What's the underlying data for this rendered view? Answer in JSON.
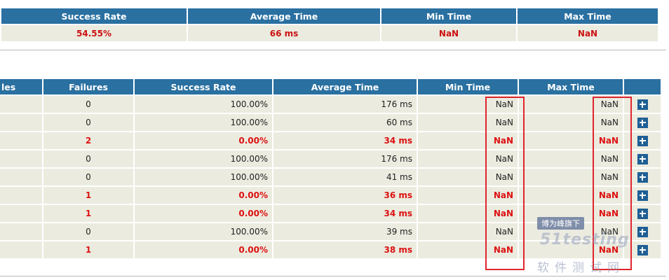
{
  "summary": {
    "headers": [
      "Success Rate",
      "Average Time",
      "Min Time",
      "Max Time"
    ],
    "values": [
      "54.55%",
      "66 ms",
      "NaN",
      "NaN"
    ]
  },
  "details": {
    "headers": [
      "les",
      "Failures",
      "Success Rate",
      "Average Time",
      "Min Time",
      "Max Time"
    ],
    "rows": [
      {
        "failures": "0",
        "success_rate": "100.00%",
        "avg_time": "176 ms",
        "min_time": "NaN",
        "max_time": "NaN"
      },
      {
        "failures": "0",
        "success_rate": "100.00%",
        "avg_time": "60 ms",
        "min_time": "NaN",
        "max_time": "NaN"
      },
      {
        "failures": "2",
        "success_rate": "0.00%",
        "avg_time": "34 ms",
        "min_time": "NaN",
        "max_time": "NaN"
      },
      {
        "failures": "0",
        "success_rate": "100.00%",
        "avg_time": "176 ms",
        "min_time": "NaN",
        "max_time": "NaN"
      },
      {
        "failures": "0",
        "success_rate": "100.00%",
        "avg_time": "41 ms",
        "min_time": "NaN",
        "max_time": "NaN"
      },
      {
        "failures": "1",
        "success_rate": "0.00%",
        "avg_time": "36 ms",
        "min_time": "NaN",
        "max_time": "NaN"
      },
      {
        "failures": "1",
        "success_rate": "0.00%",
        "avg_time": "34 ms",
        "min_time": "NaN",
        "max_time": "NaN"
      },
      {
        "failures": "0",
        "success_rate": "100.00%",
        "avg_time": "39 ms",
        "min_time": "NaN",
        "max_time": "NaN"
      },
      {
        "failures": "1",
        "success_rate": "0.00%",
        "avg_time": "38 ms",
        "min_time": "NaN",
        "max_time": "NaN"
      }
    ]
  },
  "watermark": {
    "tag": "博为峰旗下",
    "logo": "51testing",
    "sub": "软件测试网"
  },
  "colors": {
    "header_bg": "#2a70a1",
    "cell_bg": "#ebebdf",
    "failure_text": "#dd1111",
    "highlight_box": "#e0262e",
    "plus_button": "#1f5f95"
  },
  "icons": {
    "expand": "plus-icon"
  }
}
